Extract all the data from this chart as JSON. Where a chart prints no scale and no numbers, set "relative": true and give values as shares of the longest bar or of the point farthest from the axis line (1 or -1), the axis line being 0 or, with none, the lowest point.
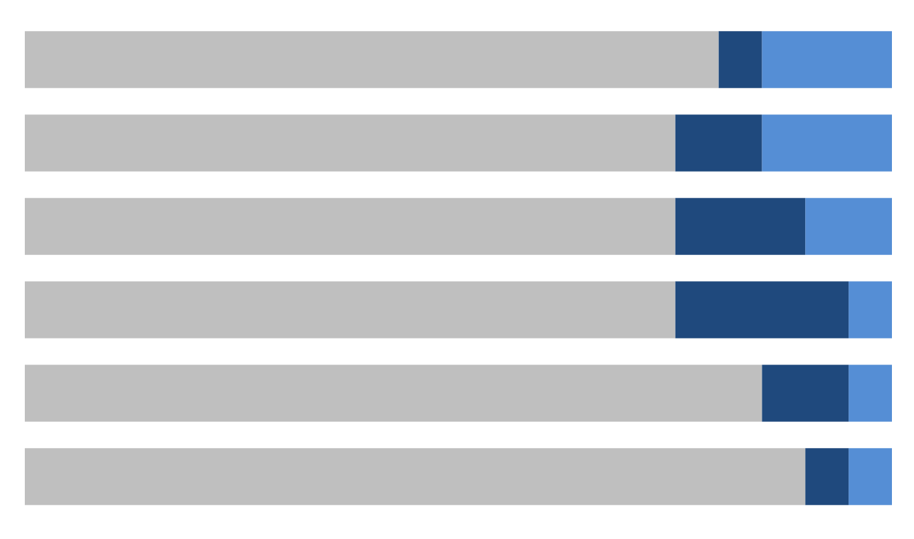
{
  "chart_data": {
    "type": "bar",
    "orientation": "horizontal",
    "stacked": true,
    "relative": true,
    "categories": [
      null,
      null,
      null,
      null,
      null,
      null
    ],
    "series": [
      {
        "color": "#bfbfbf",
        "values": [
          0.8,
          0.75,
          0.75,
          0.75,
          0.85,
          0.9
        ]
      },
      {
        "color": "#1f497d",
        "values": [
          0.05,
          0.1,
          0.15,
          0.2,
          0.1,
          0.05
        ]
      },
      {
        "color": "#558ed5",
        "values": [
          0.15,
          0.15,
          0.1,
          0.05,
          0.05,
          0.05
        ]
      }
    ]
  }
}
